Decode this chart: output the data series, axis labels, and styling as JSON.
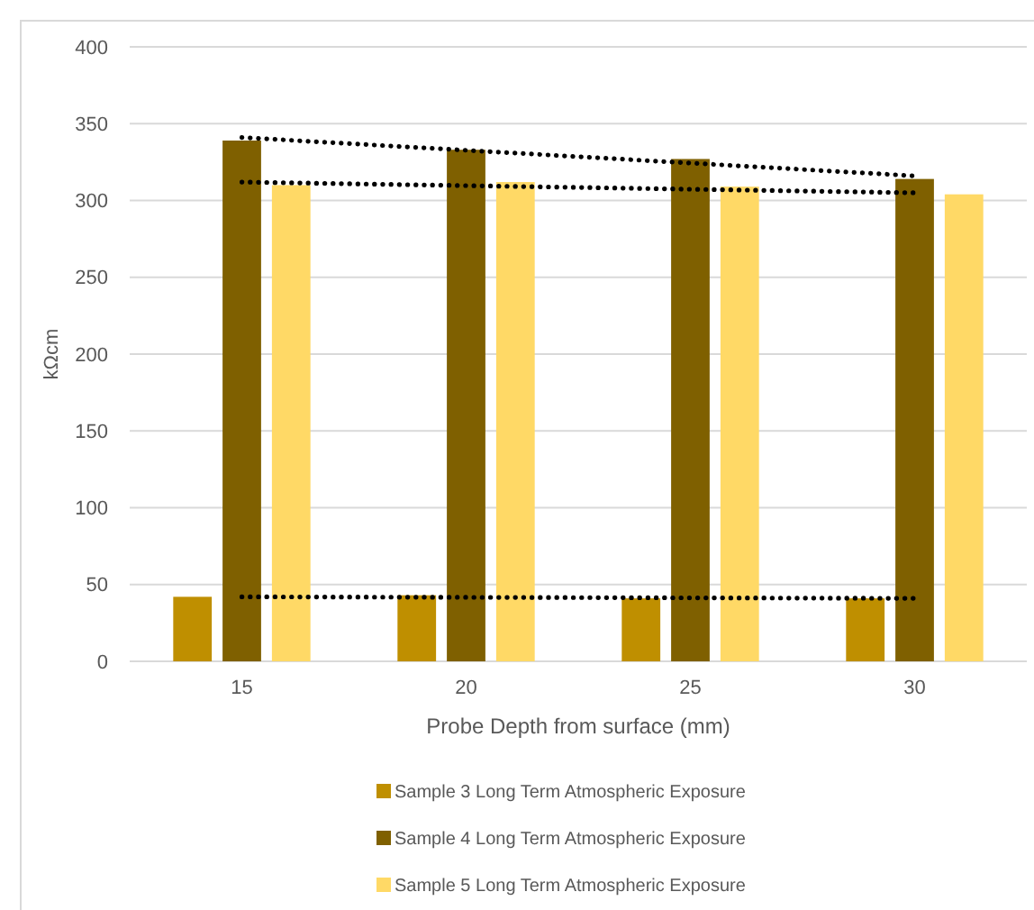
{
  "chart_data": {
    "type": "bar",
    "xlabel": "Probe Depth from surface (mm)",
    "ylabel": "kΩcm",
    "categories": [
      "15",
      "20",
      "25",
      "30"
    ],
    "ylim": [
      0,
      400
    ],
    "yticks": [
      0,
      50,
      100,
      150,
      200,
      250,
      300,
      350,
      400
    ],
    "grid": "y",
    "legend": "bottom",
    "series": [
      {
        "name": "Sample 3 Long Term Atmospheric Exposure",
        "color": "#bf8f00",
        "values": [
          42,
          43,
          41,
          41
        ]
      },
      {
        "name": "Sample 4 Long Term Atmospheric Exposure",
        "color": "#7f6000",
        "values": [
          339,
          333,
          327,
          314
        ]
      },
      {
        "name": "Sample 5 Long Term Atmospheric Exposure",
        "color": "#ffd966",
        "values": [
          310,
          312,
          309,
          304
        ]
      },
      {
        "type": "line",
        "color": "#000000",
        "line_style": "dotted",
        "x": [
          "15",
          "30"
        ],
        "values": [
          341,
          316
        ]
      },
      {
        "type": "line",
        "color": "#000000",
        "line_style": "dotted",
        "x": [
          "15",
          "30"
        ],
        "values": [
          312,
          305
        ]
      },
      {
        "type": "line",
        "color": "#000000",
        "line_style": "dotted",
        "x": [
          "15",
          "30"
        ],
        "values": [
          42,
          41
        ]
      }
    ]
  }
}
